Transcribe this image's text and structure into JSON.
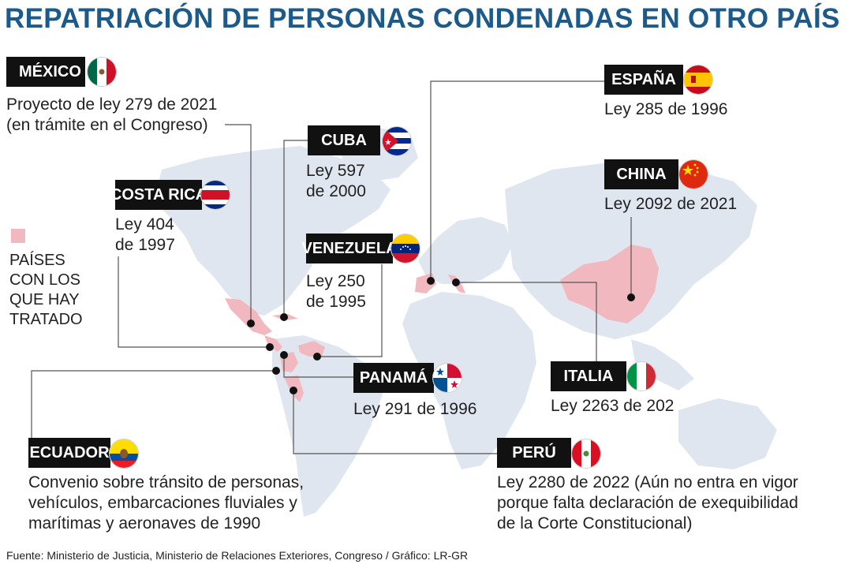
{
  "title": "REPATRIACIÓN DE PERSONAS CONDENADAS EN OTRO PAÍS",
  "legend": {
    "text": "PAÍSES\nCON LOS\nQUE HAY\nTRATADO",
    "color": "#f2b8c0"
  },
  "map": {
    "land_color": "#dfe6ef",
    "treaty_color": "#f2b8c0"
  },
  "countries": [
    {
      "key": "mexico",
      "name": "MÉXICO",
      "law": "Proyecto de ley 279 de 2021\n(en trámite en el Congreso)",
      "flag_icon": "mexico-flag-icon"
    },
    {
      "key": "cuba",
      "name": "CUBA",
      "law": "Ley 597\nde 2000",
      "flag_icon": "cuba-flag-icon"
    },
    {
      "key": "costa_rica",
      "name": "COSTA RICA",
      "law": "Ley 404\nde 1997",
      "flag_icon": "costa-rica-flag-icon"
    },
    {
      "key": "venezuela",
      "name": "VENEZUELA",
      "law": "Ley 250\nde 1995",
      "flag_icon": "venezuela-flag-icon"
    },
    {
      "key": "panama",
      "name": "PANAMÁ",
      "law": "Ley 291 de 1996",
      "flag_icon": "panama-flag-icon"
    },
    {
      "key": "ecuador",
      "name": "ECUADOR",
      "law": "Convenio sobre tránsito de personas,\nvehículos, embarcaciones fluviales y\nmarítimas y aeronaves de 1990",
      "flag_icon": "ecuador-flag-icon"
    },
    {
      "key": "espana",
      "name": "ESPAÑA",
      "law": "Ley 285 de 1996",
      "flag_icon": "spain-flag-icon"
    },
    {
      "key": "china",
      "name": "CHINA",
      "law": "Ley 2092 de 2021",
      "flag_icon": "china-flag-icon"
    },
    {
      "key": "italia",
      "name": "ITALIA",
      "law": "Ley 2263 de 202",
      "flag_icon": "italy-flag-icon"
    },
    {
      "key": "peru",
      "name": "PERÚ",
      "law": "Ley 2280 de 2022 (Aún no entra en vigor\nporque falta declaración de exequibilidad\nde la Corte Constitucional)",
      "flag_icon": "peru-flag-icon"
    }
  ],
  "source": "Fuente: Ministerio de Justicia, Ministerio de Relaciones Exteriores, Congreso / Gráfico: LR-GR"
}
